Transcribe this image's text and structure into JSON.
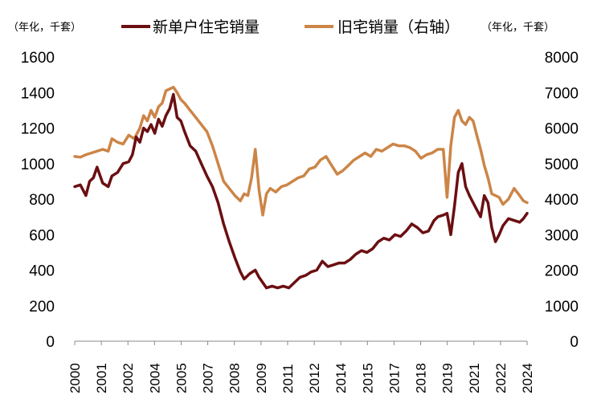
{
  "chart_data": {
    "type": "line",
    "title": "",
    "left_axis_unit": "（年化，千套）",
    "right_axis_unit": "（年化，千套）",
    "y_left": {
      "min": 0,
      "max": 1600,
      "ticks": [
        "0",
        "200",
        "400",
        "600",
        "800",
        "1000",
        "1200",
        "1400",
        "1600"
      ]
    },
    "y_right": {
      "min": 0,
      "max": 8000,
      "ticks": [
        "0",
        "1000",
        "2000",
        "3000",
        "4000",
        "5000",
        "6000",
        "7000",
        "8000"
      ]
    },
    "x_range": [
      2000,
      2024.3
    ],
    "x_ticks": [
      "2000",
      "2001",
      "2002",
      "2004",
      "2005",
      "2007",
      "2008",
      "2009",
      "2011",
      "2012",
      "2014",
      "2015",
      "2017",
      "2018",
      "2019",
      "2021",
      "2022",
      "2024"
    ],
    "legend": {
      "new": "新单户住宅销量",
      "existing": "旧宅销量（右轴）"
    },
    "colors": {
      "new": "#6b0f12",
      "existing": "#cc8547"
    },
    "series": [
      {
        "key": "new",
        "name": "新单户住宅销量",
        "axis": "left",
        "points": [
          [
            2000.0,
            870
          ],
          [
            2000.3,
            880
          ],
          [
            2000.6,
            820
          ],
          [
            2000.8,
            900
          ],
          [
            2001.0,
            920
          ],
          [
            2001.2,
            980
          ],
          [
            2001.5,
            890
          ],
          [
            2001.8,
            870
          ],
          [
            2002.0,
            930
          ],
          [
            2002.3,
            950
          ],
          [
            2002.6,
            1000
          ],
          [
            2002.9,
            1010
          ],
          [
            2003.1,
            1050
          ],
          [
            2003.3,
            1150
          ],
          [
            2003.5,
            1120
          ],
          [
            2003.7,
            1200
          ],
          [
            2003.9,
            1180
          ],
          [
            2004.1,
            1220
          ],
          [
            2004.3,
            1170
          ],
          [
            2004.5,
            1250
          ],
          [
            2004.7,
            1210
          ],
          [
            2004.9,
            1270
          ],
          [
            2005.1,
            1310
          ],
          [
            2005.3,
            1390
          ],
          [
            2005.5,
            1260
          ],
          [
            2005.7,
            1240
          ],
          [
            2005.9,
            1180
          ],
          [
            2006.2,
            1100
          ],
          [
            2006.5,
            1070
          ],
          [
            2006.8,
            1000
          ],
          [
            2007.1,
            930
          ],
          [
            2007.4,
            870
          ],
          [
            2007.7,
            780
          ],
          [
            2008.0,
            660
          ],
          [
            2008.3,
            560
          ],
          [
            2008.6,
            470
          ],
          [
            2008.9,
            390
          ],
          [
            2009.1,
            350
          ],
          [
            2009.4,
            380
          ],
          [
            2009.7,
            400
          ],
          [
            2009.9,
            360
          ],
          [
            2010.1,
            330
          ],
          [
            2010.3,
            300
          ],
          [
            2010.6,
            310
          ],
          [
            2010.9,
            300
          ],
          [
            2011.2,
            310
          ],
          [
            2011.5,
            300
          ],
          [
            2011.8,
            330
          ],
          [
            2012.1,
            360
          ],
          [
            2012.4,
            370
          ],
          [
            2012.7,
            390
          ],
          [
            2013.0,
            400
          ],
          [
            2013.3,
            450
          ],
          [
            2013.6,
            420
          ],
          [
            2013.9,
            430
          ],
          [
            2014.2,
            440
          ],
          [
            2014.5,
            440
          ],
          [
            2014.8,
            460
          ],
          [
            2015.1,
            490
          ],
          [
            2015.4,
            510
          ],
          [
            2015.7,
            500
          ],
          [
            2016.0,
            520
          ],
          [
            2016.3,
            560
          ],
          [
            2016.6,
            580
          ],
          [
            2016.9,
            570
          ],
          [
            2017.2,
            600
          ],
          [
            2017.5,
            590
          ],
          [
            2017.8,
            620
          ],
          [
            2018.1,
            660
          ],
          [
            2018.4,
            640
          ],
          [
            2018.7,
            610
          ],
          [
            2019.0,
            620
          ],
          [
            2019.3,
            680
          ],
          [
            2019.5,
            700
          ],
          [
            2019.8,
            710
          ],
          [
            2020.0,
            720
          ],
          [
            2020.2,
            600
          ],
          [
            2020.4,
            760
          ],
          [
            2020.6,
            950
          ],
          [
            2020.8,
            1000
          ],
          [
            2021.0,
            870
          ],
          [
            2021.2,
            820
          ],
          [
            2021.5,
            760
          ],
          [
            2021.8,
            700
          ],
          [
            2022.0,
            820
          ],
          [
            2022.2,
            780
          ],
          [
            2022.4,
            640
          ],
          [
            2022.6,
            560
          ],
          [
            2022.8,
            600
          ],
          [
            2023.0,
            650
          ],
          [
            2023.3,
            690
          ],
          [
            2023.6,
            680
          ],
          [
            2023.9,
            670
          ],
          [
            2024.1,
            690
          ],
          [
            2024.3,
            720
          ]
        ]
      },
      {
        "key": "existing",
        "name": "旧宅销量（右轴）",
        "axis": "right",
        "points": [
          [
            2000.0,
            5200
          ],
          [
            2000.3,
            5180
          ],
          [
            2000.6,
            5250
          ],
          [
            2000.9,
            5300
          ],
          [
            2001.2,
            5350
          ],
          [
            2001.5,
            5400
          ],
          [
            2001.8,
            5350
          ],
          [
            2002.0,
            5700
          ],
          [
            2002.3,
            5600
          ],
          [
            2002.6,
            5550
          ],
          [
            2002.9,
            5800
          ],
          [
            2003.2,
            5700
          ],
          [
            2003.5,
            6000
          ],
          [
            2003.7,
            6350
          ],
          [
            2003.9,
            6200
          ],
          [
            2004.1,
            6500
          ],
          [
            2004.3,
            6300
          ],
          [
            2004.5,
            6600
          ],
          [
            2004.7,
            6700
          ],
          [
            2004.9,
            7050
          ],
          [
            2005.1,
            7100
          ],
          [
            2005.3,
            7150
          ],
          [
            2005.5,
            7000
          ],
          [
            2005.7,
            6800
          ],
          [
            2005.9,
            6700
          ],
          [
            2006.2,
            6500
          ],
          [
            2006.5,
            6300
          ],
          [
            2006.8,
            6100
          ],
          [
            2007.1,
            5900
          ],
          [
            2007.4,
            5500
          ],
          [
            2007.7,
            5000
          ],
          [
            2008.0,
            4500
          ],
          [
            2008.3,
            4300
          ],
          [
            2008.6,
            4100
          ],
          [
            2008.9,
            3950
          ],
          [
            2009.1,
            4150
          ],
          [
            2009.3,
            4100
          ],
          [
            2009.5,
            4600
          ],
          [
            2009.7,
            5400
          ],
          [
            2009.9,
            4250
          ],
          [
            2010.1,
            3550
          ],
          [
            2010.3,
            4150
          ],
          [
            2010.5,
            4300
          ],
          [
            2010.8,
            4200
          ],
          [
            2011.1,
            4350
          ],
          [
            2011.4,
            4400
          ],
          [
            2011.7,
            4500
          ],
          [
            2012.0,
            4600
          ],
          [
            2012.3,
            4650
          ],
          [
            2012.6,
            4850
          ],
          [
            2012.9,
            4900
          ],
          [
            2013.2,
            5100
          ],
          [
            2013.5,
            5200
          ],
          [
            2013.8,
            4950
          ],
          [
            2014.1,
            4700
          ],
          [
            2014.4,
            4800
          ],
          [
            2014.7,
            4950
          ],
          [
            2015.0,
            5100
          ],
          [
            2015.3,
            5200
          ],
          [
            2015.6,
            5300
          ],
          [
            2015.9,
            5200
          ],
          [
            2016.2,
            5400
          ],
          [
            2016.5,
            5350
          ],
          [
            2016.8,
            5450
          ],
          [
            2017.1,
            5550
          ],
          [
            2017.4,
            5500
          ],
          [
            2017.7,
            5500
          ],
          [
            2018.0,
            5450
          ],
          [
            2018.3,
            5350
          ],
          [
            2018.6,
            5150
          ],
          [
            2018.9,
            5250
          ],
          [
            2019.2,
            5300
          ],
          [
            2019.5,
            5400
          ],
          [
            2019.8,
            5400
          ],
          [
            2020.0,
            4050
          ],
          [
            2020.2,
            5500
          ],
          [
            2020.4,
            6300
          ],
          [
            2020.6,
            6500
          ],
          [
            2020.8,
            6200
          ],
          [
            2021.0,
            6100
          ],
          [
            2021.2,
            6300
          ],
          [
            2021.4,
            6200
          ],
          [
            2021.6,
            5800
          ],
          [
            2021.8,
            5400
          ],
          [
            2022.0,
            4950
          ],
          [
            2022.2,
            4600
          ],
          [
            2022.4,
            4150
          ],
          [
            2022.6,
            4100
          ],
          [
            2022.8,
            4050
          ],
          [
            2023.0,
            3850
          ],
          [
            2023.3,
            4000
          ],
          [
            2023.6,
            4300
          ],
          [
            2023.9,
            4100
          ],
          [
            2024.1,
            3950
          ],
          [
            2024.3,
            3900
          ]
        ]
      }
    ]
  }
}
